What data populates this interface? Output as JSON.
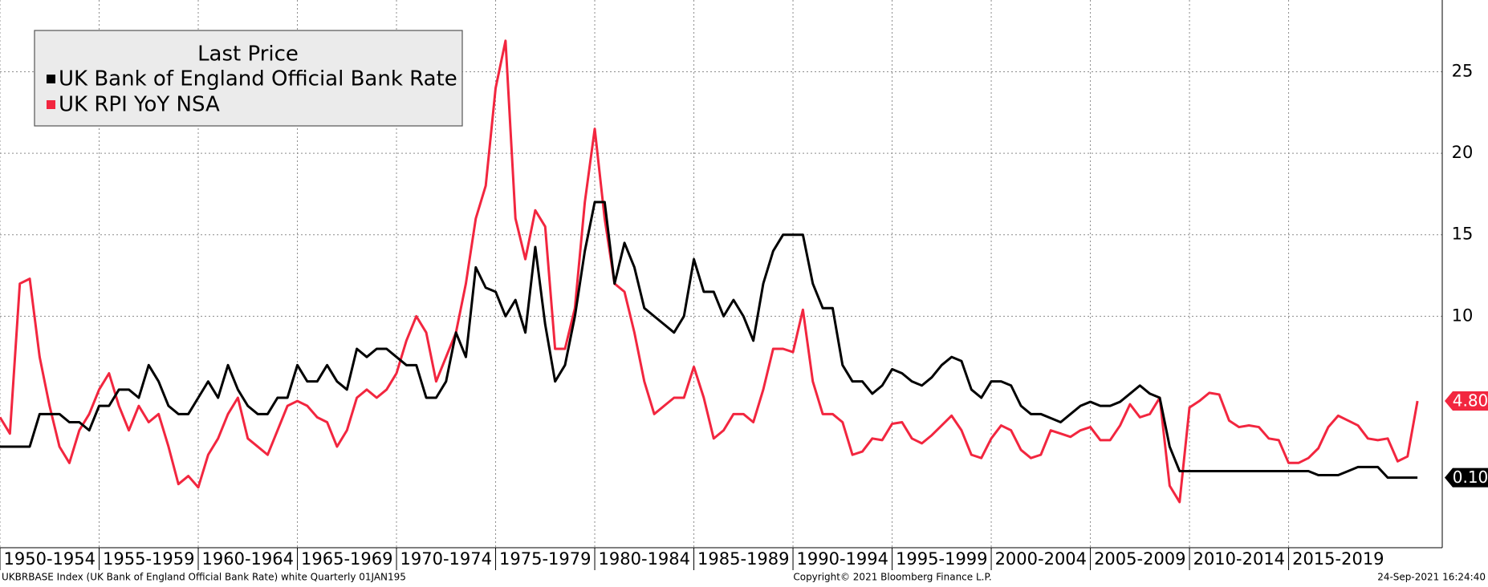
{
  "chart_data": {
    "type": "line",
    "legend_title": "Last Price",
    "legend": "upper left",
    "grid": true,
    "xlim": [
      1950,
      2022.75
    ],
    "ylim": [
      -4.2,
      29.4
    ],
    "xticks": [
      {
        "value": 1950,
        "label": "1950-1954"
      },
      {
        "value": 1955,
        "label": "1955-1959"
      },
      {
        "value": 1960,
        "label": "1960-1964"
      },
      {
        "value": 1965,
        "label": "1965-1969"
      },
      {
        "value": 1970,
        "label": "1970-1974"
      },
      {
        "value": 1975,
        "label": "1975-1979"
      },
      {
        "value": 1980,
        "label": "1980-1984"
      },
      {
        "value": 1985,
        "label": "1985-1989"
      },
      {
        "value": 1990,
        "label": "1990-1994"
      },
      {
        "value": 1995,
        "label": "1995-1999"
      },
      {
        "value": 2000,
        "label": "2000-2004"
      },
      {
        "value": 2005,
        "label": "2005-2009"
      },
      {
        "value": 2010,
        "label": "2010-2014"
      },
      {
        "value": 2015,
        "label": "2015-2019"
      }
    ],
    "yticks": [
      10,
      15,
      20,
      25
    ],
    "x": [
      1950,
      1950.5,
      1951,
      1951.5,
      1952,
      1952.5,
      1953,
      1953.5,
      1954,
      1954.5,
      1955,
      1955.5,
      1956,
      1956.5,
      1957,
      1957.5,
      1958,
      1958.5,
      1959,
      1959.5,
      1960,
      1960.5,
      1961,
      1961.5,
      1962,
      1962.5,
      1963,
      1963.5,
      1964,
      1964.5,
      1965,
      1965.5,
      1966,
      1966.5,
      1967,
      1967.5,
      1968,
      1968.5,
      1969,
      1969.5,
      1970,
      1970.5,
      1971,
      1971.5,
      1972,
      1972.5,
      1973,
      1973.5,
      1974,
      1974.5,
      1975,
      1975.5,
      1976,
      1976.5,
      1977,
      1977.5,
      1978,
      1978.5,
      1979,
      1979.5,
      1980,
      1980.5,
      1981,
      1981.5,
      1982,
      1982.5,
      1983,
      1983.5,
      1984,
      1984.5,
      1985,
      1985.5,
      1986,
      1986.5,
      1987,
      1987.5,
      1988,
      1988.5,
      1989,
      1989.5,
      1990,
      1990.5,
      1991,
      1991.5,
      1992,
      1992.5,
      1993,
      1993.5,
      1994,
      1994.5,
      1995,
      1995.5,
      1996,
      1996.5,
      1997,
      1997.5,
      1998,
      1998.5,
      1999,
      1999.5,
      2000,
      2000.5,
      2001,
      2001.5,
      2002,
      2002.5,
      2003,
      2003.5,
      2004,
      2004.5,
      2005,
      2005.5,
      2006,
      2006.5,
      2007,
      2007.5,
      2008,
      2008.5,
      2009,
      2009.5,
      2010,
      2010.5,
      2011,
      2011.5,
      2012,
      2012.5,
      2013,
      2013.5,
      2014,
      2014.5,
      2015,
      2015.5,
      2016,
      2016.5,
      2017,
      2017.5,
      2018,
      2018.5,
      2019,
      2019.5,
      2020,
      2020.5,
      2021,
      2021.5
    ],
    "series": [
      {
        "name": "UK Bank of England Official Bank Rate",
        "color": "#000000",
        "last_value_label": "0.10",
        "values": [
          2,
          2,
          2,
          2,
          4,
          4,
          4,
          3.5,
          3.5,
          3,
          4.5,
          4.5,
          5.5,
          5.5,
          5,
          7,
          6,
          4.5,
          4,
          4,
          5,
          6,
          5,
          7,
          5.5,
          4.5,
          4,
          4,
          5,
          5,
          7,
          6,
          6,
          7,
          6,
          5.5,
          8,
          7.5,
          8,
          8,
          7.5,
          7,
          7,
          5,
          5,
          6,
          9,
          7.5,
          13,
          11.75,
          11.5,
          10,
          11,
          9,
          14.25,
          9.5,
          6,
          7,
          10,
          14,
          17,
          17,
          12,
          14.5,
          13,
          10.5,
          10,
          9.5,
          9,
          10,
          13.5,
          11.5,
          11.5,
          10,
          11,
          10,
          8.5,
          12,
          14,
          15,
          15,
          15,
          12,
          10.5,
          10.5,
          7,
          6,
          6,
          5.25,
          5.75,
          6.75,
          6.5,
          6,
          5.75,
          6.25,
          7,
          7.5,
          7.25,
          5.5,
          5,
          6,
          6,
          5.75,
          4.5,
          4,
          4,
          3.75,
          3.5,
          4,
          4.5,
          4.75,
          4.5,
          4.5,
          4.75,
          5.25,
          5.75,
          5.25,
          5,
          2,
          0.5,
          0.5,
          0.5,
          0.5,
          0.5,
          0.5,
          0.5,
          0.5,
          0.5,
          0.5,
          0.5,
          0.5,
          0.5,
          0.5,
          0.25,
          0.25,
          0.25,
          0.5,
          0.75,
          0.75,
          0.75,
          0.1,
          0.1,
          0.1,
          0.1
        ]
      },
      {
        "name": "UK RPI YoY NSA",
        "color": "#f2263f",
        "last_value_label": "4.80",
        "values": [
          3.8,
          2.8,
          12,
          12.3,
          7.5,
          4.5,
          2,
          1,
          3,
          4,
          5.5,
          6.5,
          4.5,
          3,
          4.5,
          3.5,
          4,
          2,
          -0.3,
          0.2,
          -0.5,
          1.5,
          2.5,
          4,
          5,
          2.5,
          2,
          1.5,
          3,
          4.5,
          4.8,
          4.5,
          3.8,
          3.5,
          2,
          3,
          5,
          5.5,
          5,
          5.5,
          6.5,
          8.5,
          10,
          9,
          6,
          7.5,
          9,
          12,
          16,
          18,
          24,
          26.9,
          16,
          13.5,
          16.5,
          15.5,
          8,
          8,
          10.5,
          17,
          21.5,
          16,
          12,
          11.5,
          9,
          6,
          4,
          4.5,
          5,
          5,
          6.9,
          5,
          2.5,
          3,
          4,
          4,
          3.5,
          5.5,
          8,
          8,
          7.8,
          10.4,
          6,
          4,
          4,
          3.5,
          1.5,
          1.7,
          2.5,
          2.4,
          3.4,
          3.5,
          2.5,
          2.2,
          2.7,
          3.3,
          3.9,
          3,
          1.5,
          1.3,
          2.5,
          3.3,
          3,
          1.8,
          1.3,
          1.5,
          3,
          2.8,
          2.6,
          3,
          3.2,
          2.4,
          2.4,
          3.3,
          4.6,
          3.8,
          4,
          5,
          -0.4,
          -1.4,
          4.4,
          4.8,
          5.3,
          5.2,
          3.6,
          3.2,
          3.3,
          3.2,
          2.5,
          2.4,
          1,
          1,
          1.3,
          1.9,
          3.2,
          3.9,
          3.6,
          3.3,
          2.5,
          2.4,
          2.5,
          1.1,
          1.4,
          4.8
        ]
      }
    ]
  },
  "footer": {
    "source": "UKBRBASE Index (UK Bank of England Official Bank Rate) white  Quarterly 01JAN195",
    "copyright": "Copyright© 2021 Bloomberg Finance L.P.",
    "timestamp": "24-Sep-2021 16:24:40"
  }
}
